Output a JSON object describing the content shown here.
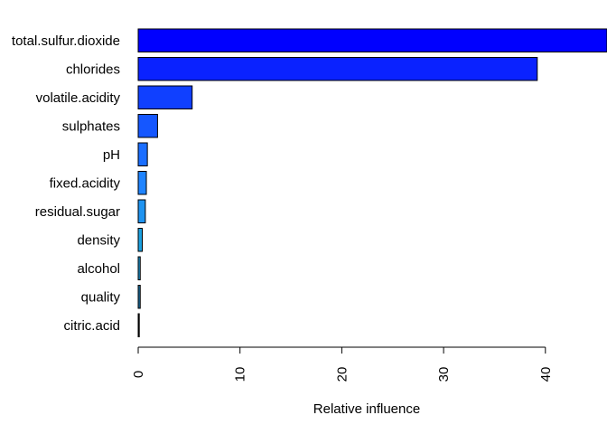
{
  "chart_data": {
    "type": "bar",
    "orientation": "horizontal",
    "categories": [
      "total.sulfur.dioxide",
      "chlorides",
      "volatile.acidity",
      "sulphates",
      "pH",
      "fixed.acidity",
      "residual.sugar",
      "density",
      "alcohol",
      "quality",
      "citric.acid"
    ],
    "values": [
      46.3,
      39.2,
      5.3,
      1.9,
      0.9,
      0.8,
      0.7,
      0.4,
      0.2,
      0.2,
      0.05
    ],
    "colors": [
      "#0000ff",
      "#0a22ff",
      "#1040ff",
      "#1557ff",
      "#1a6eff",
      "#1f84ff",
      "#1e93f0",
      "#1ba0e0",
      "#1c8fc8",
      "#1a6ea0",
      "#000000"
    ],
    "xlabel": "Relative influence",
    "ylabel": "",
    "title": "",
    "xticks": [
      0,
      10,
      20,
      30,
      40
    ],
    "xlim": [
      0,
      46.3
    ],
    "grid": false
  }
}
